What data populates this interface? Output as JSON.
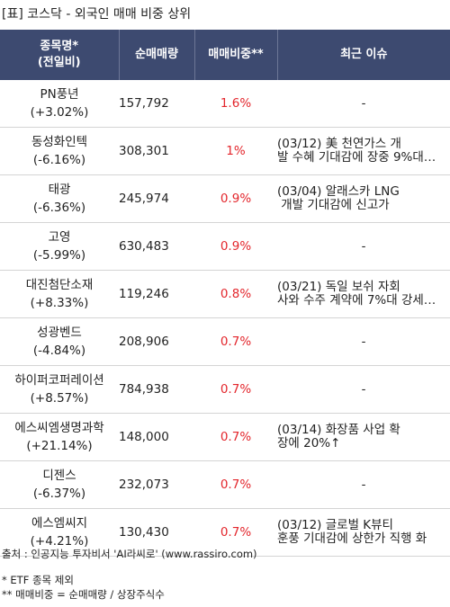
{
  "title": "[표] 코스닥 - 외국인 매매 비중 상위",
  "headers": {
    "name_line1": "종목명*",
    "name_line2": "(전일비)",
    "volume": "순매매량",
    "ratio": "매매비중**",
    "issue": "최근 이슈"
  },
  "rows": [
    {
      "name": "PN풍년",
      "change": "(+3.02%)",
      "volume": "157,792",
      "ratio": "1.6%",
      "issue": "-"
    },
    {
      "name": "동성화인텍",
      "change": "(-6.16%)",
      "volume": "308,301",
      "ratio": "1%",
      "issue": "(03/12) 美 천연가스 개\n발 수혜 기대감에 장중 9%대…"
    },
    {
      "name": "태광",
      "change": "(-6.36%)",
      "volume": "245,974",
      "ratio": "0.9%",
      "issue": "(03/04) 알래스카 LNG\n 개발 기대감에 신고가"
    },
    {
      "name": "고영",
      "change": "(-5.99%)",
      "volume": "630,483",
      "ratio": "0.9%",
      "issue": "-"
    },
    {
      "name": "대진첨단소재",
      "change": "(+8.33%)",
      "volume": "119,246",
      "ratio": "0.8%",
      "issue": "(03/21) 독일 보쉬 자회\n사와 수주 계약에 7%대 강세…"
    },
    {
      "name": "성광벤드",
      "change": "(-4.84%)",
      "volume": "208,906",
      "ratio": "0.7%",
      "issue": "-"
    },
    {
      "name": "하이퍼코퍼레이션",
      "change": "(+8.57%)",
      "volume": "784,938",
      "ratio": "0.7%",
      "issue": "-"
    },
    {
      "name": "에스씨엠생명과학",
      "change": "(+21.14%)",
      "volume": "148,000",
      "ratio": "0.7%",
      "issue": "(03/14) 화장품 사업 확\n장에 20%↑"
    },
    {
      "name": "디젠스",
      "change": "(-6.37%)",
      "volume": "232,073",
      "ratio": "0.7%",
      "issue": "-"
    },
    {
      "name": "에스엠씨지",
      "change": "(+4.21%)",
      "volume": "130,430",
      "ratio": "0.7%",
      "issue": "(03/12) 글로벌 K뷰티\n훈풍 기대감에 상한가 직행 화"
    }
  ],
  "footer": {
    "source": "출처 : 인공지능 투자비서 'AI라씨로' (www.rassiro.com)",
    "note1": "* ETF 종목 제외",
    "note2": "** 매매비중 = 순매매량 / 상장주식수"
  },
  "colors": {
    "header_bg": "#3d4a70",
    "ratio_text": "#e3262c"
  }
}
